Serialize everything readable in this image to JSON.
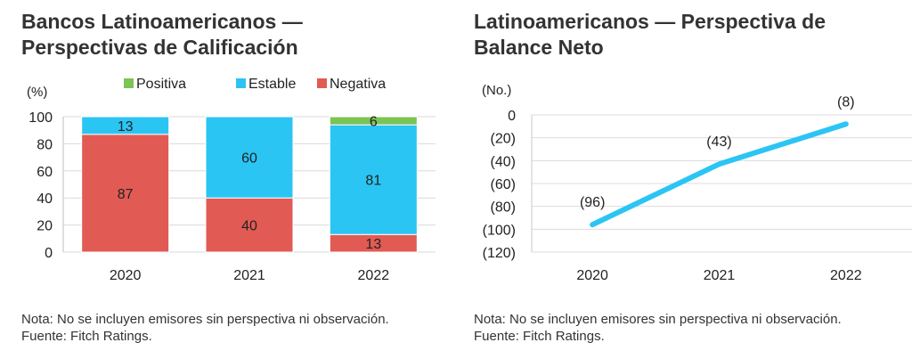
{
  "charts": {
    "left": {
      "title_line1": "Bancos Latinoamericanos —",
      "title_line2": "Perspectivas de Calificación",
      "note_line1": "Nota: No se incluyen emisores sin perspectiva ni observación.",
      "note_line2": "Fuente: Fitch Ratings."
    },
    "right": {
      "title_line1": "Latinoamericanos — Perspectiva de",
      "title_line2": "Balance Neto",
      "note_line1": "Nota: No se incluyen emisores sin perspectiva ni observación.",
      "note_line2": "Fuente: Fitch Ratings."
    }
  },
  "chart_data": [
    {
      "type": "bar",
      "stacked": true,
      "title": "Bancos Latinoamericanos — Perspectivas de Calificación",
      "ylabel": "(%)",
      "ylim": [
        0,
        100
      ],
      "yticks": [
        0,
        20,
        40,
        60,
        80,
        100
      ],
      "categories": [
        "2020",
        "2021",
        "2022"
      ],
      "legend": "top",
      "series": [
        {
          "name": "Negativa",
          "color": "#e15b54",
          "values": [
            87,
            40,
            13
          ]
        },
        {
          "name": "Estable",
          "color": "#2bc5f4",
          "values": [
            13,
            60,
            81
          ]
        },
        {
          "name": "Positiva",
          "color": "#7cc455",
          "values": [
            0,
            0,
            6
          ]
        }
      ],
      "legend_order": [
        "Positiva",
        "Estable",
        "Negativa"
      ],
      "grid": true
    },
    {
      "type": "line",
      "title": "Latinoamericanos — Perspectiva de Balance Neto",
      "ylabel": "(No.)",
      "ylim": [
        -120,
        0
      ],
      "yticks": [
        0,
        -20,
        -40,
        -60,
        -80,
        -100,
        -120
      ],
      "ytick_labels": [
        "0",
        "(20)",
        "(40)",
        "(60)",
        "(80)",
        "(100)",
        "(120)"
      ],
      "x": [
        "2020",
        "2021",
        "2022"
      ],
      "series": [
        {
          "name": "Balance Neto",
          "color": "#2bc5f4",
          "values": [
            -96,
            -43,
            -8
          ],
          "labels": [
            "(96)",
            "(43)",
            "(8)"
          ]
        }
      ],
      "grid": true
    }
  ]
}
